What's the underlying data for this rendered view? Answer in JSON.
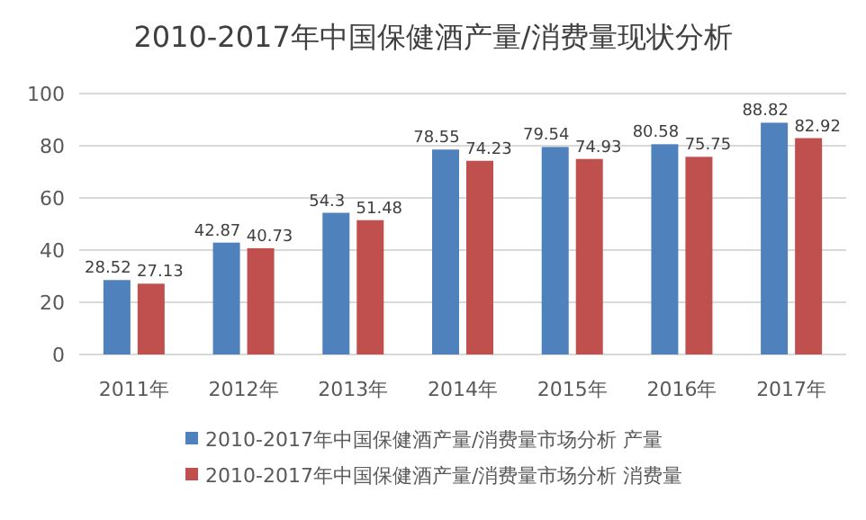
{
  "chart_data": {
    "type": "bar",
    "title": "2010-2017年中国保健酒产量/消费量现状分析",
    "categories": [
      "2011年",
      "2012年",
      "2013年",
      "2014年",
      "2015年",
      "2016年",
      "2017年"
    ],
    "series": [
      {
        "name": "2010-2017年中国保健酒产量/消费量市场分析 产量",
        "color": "#4f81bd",
        "values": [
          28.52,
          42.87,
          54.3,
          78.55,
          79.54,
          80.58,
          88.82
        ]
      },
      {
        "name": "2010-2017年中国保健酒产量/消费量市场分析 消费量",
        "color": "#c0504d",
        "values": [
          27.13,
          40.73,
          51.48,
          74.23,
          74.93,
          75.75,
          82.92
        ]
      }
    ],
    "ylim": [
      0,
      100
    ],
    "yticks": [
      0,
      20,
      40,
      60,
      80,
      100
    ],
    "grid": "y",
    "legend": "bottom",
    "data_labels": true
  }
}
